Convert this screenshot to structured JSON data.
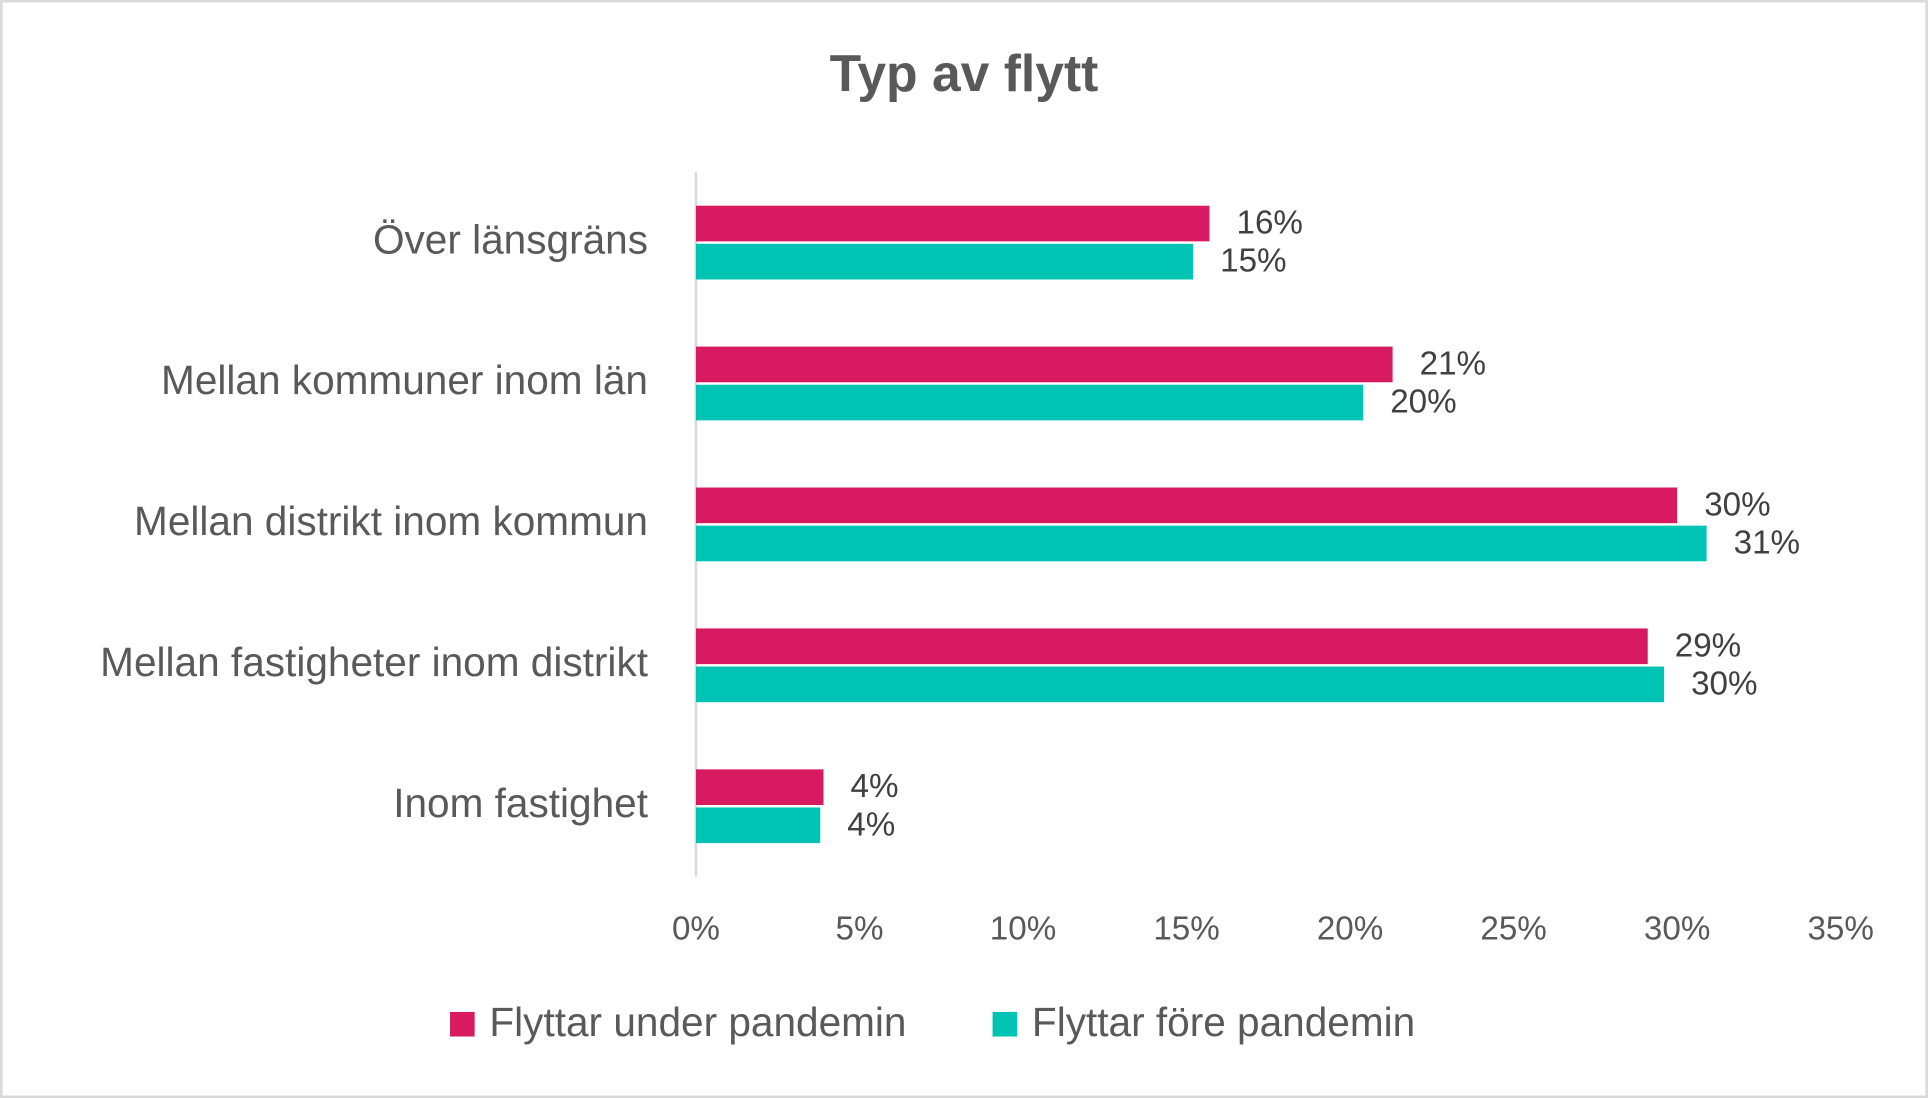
{
  "chart_data": {
    "type": "hbar",
    "title": "Typ av flytt",
    "categories": [
      "Över länsgräns",
      "Mellan kommuner inom län",
      "Mellan distrikt inom kommun",
      "Mellan fastigheter inom distrikt",
      "Inom fastighet"
    ],
    "series": [
      {
        "name": "Flyttar under pandemin",
        "color": "#d81b60",
        "values": [
          15.7,
          21.3,
          30.0,
          29.1,
          3.9
        ],
        "value_labels": [
          "16%",
          "21%",
          "30%",
          "29%",
          "4%"
        ]
      },
      {
        "name": "Flyttar före pandemin",
        "color": "#00c4b3",
        "values": [
          15.2,
          20.4,
          30.9,
          29.6,
          3.8
        ],
        "value_labels": [
          "15%",
          "20%",
          "31%",
          "30%",
          "4%"
        ]
      }
    ],
    "xlim": [
      0,
      35
    ],
    "xticks": [
      {
        "value": 0,
        "label": "0%"
      },
      {
        "value": 5,
        "label": "5%"
      },
      {
        "value": 10,
        "label": "10%"
      },
      {
        "value": 15,
        "label": "15%"
      },
      {
        "value": 20,
        "label": "20%"
      },
      {
        "value": 25,
        "label": "25%"
      },
      {
        "value": 30,
        "label": "30%"
      },
      {
        "value": 35,
        "label": "35%"
      }
    ],
    "legend": "bottom"
  }
}
